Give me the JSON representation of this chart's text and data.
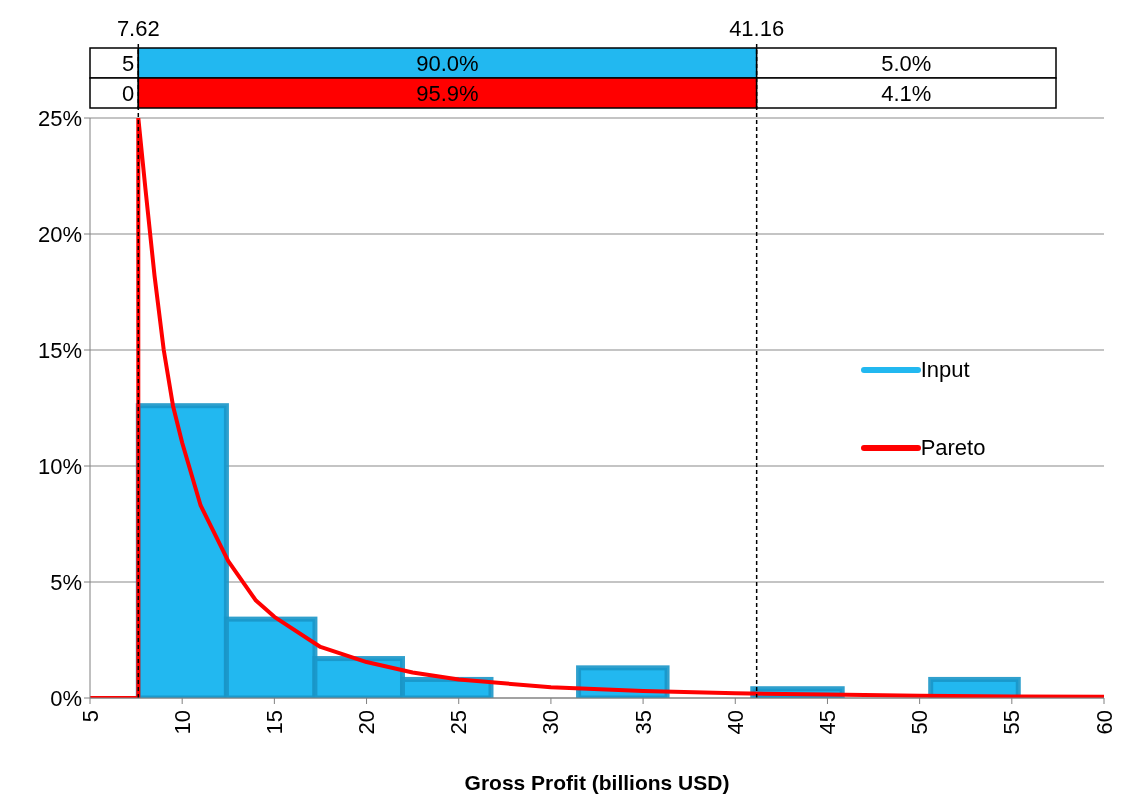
{
  "chart_data": {
    "type": "histogram",
    "xlabel": "Gross Profit (billions USD)",
    "bins": [
      7.62,
      12.4,
      17.2,
      21.95,
      26.75,
      31.5,
      36.3,
      40.95,
      45.8,
      50.6,
      55.35
    ],
    "series": [
      {
        "name": "Input",
        "type": "histogram",
        "color": "#22b8f0",
        "values": [
          12.6,
          3.4,
          1.7,
          0.8,
          0,
          1.3,
          0,
          0.4,
          0,
          0.8
        ]
      },
      {
        "name": "Pareto",
        "type": "line",
        "color": "#ff0000",
        "x": [
          5,
          7.62,
          7.62,
          8,
          8.5,
          9,
          9.5,
          10,
          11,
          12.5,
          14,
          15,
          17.5,
          20,
          22.5,
          25,
          30,
          35,
          40,
          45,
          50,
          55,
          60
        ],
        "values": [
          0,
          0,
          25,
          22,
          18.2,
          15,
          12.6,
          11,
          8.3,
          5.9,
          4.2,
          3.5,
          2.2,
          1.55,
          1.1,
          0.8,
          0.46,
          0.3,
          0.2,
          0.15,
          0.1,
          0.07,
          0.05
        ]
      }
    ],
    "xlim": [
      5,
      60
    ],
    "xticks": [
      5,
      10,
      15,
      20,
      25,
      30,
      35,
      40,
      45,
      50,
      55,
      60
    ],
    "ylim": [
      0,
      25
    ],
    "yticks": [
      {
        "value": 0,
        "label": "0%"
      },
      {
        "value": 5,
        "label": "5%"
      },
      {
        "value": 10,
        "label": "10%"
      },
      {
        "value": 15,
        "label": "15%"
      },
      {
        "value": 20,
        "label": "20%"
      },
      {
        "value": 25,
        "label": "25%"
      }
    ],
    "ref_lines": [
      {
        "axis": "x",
        "value": 7.62,
        "label": "7.62",
        "color": "#000000",
        "line_style": "dashed"
      },
      {
        "axis": "x",
        "value": 41.16,
        "label": "41.16",
        "color": "#000000",
        "line_style": "dashed"
      }
    ],
    "annotations": [
      "5",
      "90.0%",
      "5.0%",
      "0",
      "95.9%",
      "4.1%"
    ],
    "grid": "y",
    "legend": "right",
    "marker": "none",
    "line_style": "solid"
  }
}
